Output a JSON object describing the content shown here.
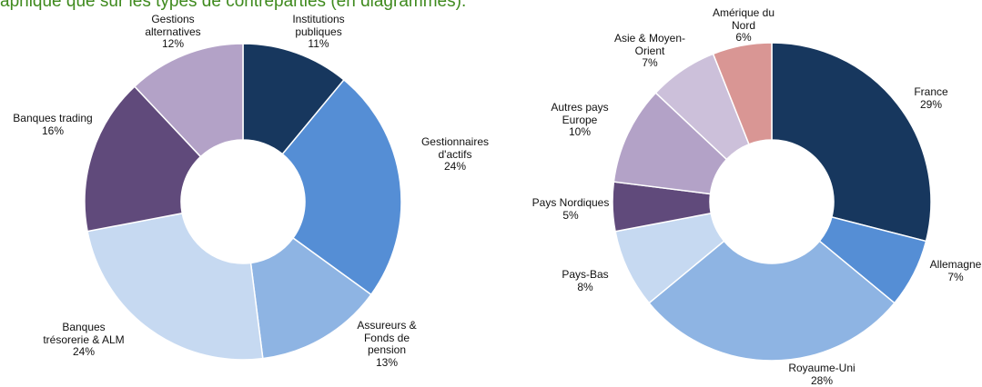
{
  "title": "aphique que sur les types de contreparties (en diagrammes).",
  "chart_data": [
    {
      "type": "donut",
      "categories": [
        "Institutions\npubliques",
        "Gestionnaires\nd'actifs",
        "Assureurs &\nFonds de\npension",
        "Banques\ntrésorerie & ALM",
        "Banques trading",
        "Gestions\nalternatives"
      ],
      "values": [
        11,
        24,
        13,
        24,
        16,
        12
      ],
      "value_labels": [
        "11%",
        "24%",
        "13%",
        "24%",
        "16%",
        "12%"
      ],
      "colors": [
        "#17375e",
        "#558ed5",
        "#8eb4e3",
        "#c6d9f1",
        "#604a7b",
        "#b3a2c7"
      ]
    },
    {
      "type": "donut",
      "categories": [
        "France",
        "Allemagne",
        "Royaume-Uni",
        "Pays-Bas",
        "Pays Nordiques",
        "Autres pays\nEurope",
        "Asie & Moyen-\nOrient",
        "Amérique du\nNord"
      ],
      "values": [
        29,
        7,
        28,
        8,
        5,
        10,
        7,
        6
      ],
      "value_labels": [
        "29%",
        "7%",
        "28%",
        "8%",
        "5%",
        "10%",
        "7%",
        "6%"
      ],
      "colors": [
        "#17375e",
        "#558ed5",
        "#8eb4e3",
        "#c6d9f1",
        "#604a7b",
        "#b3a2c7",
        "#ccc0da",
        "#d99694"
      ]
    }
  ]
}
